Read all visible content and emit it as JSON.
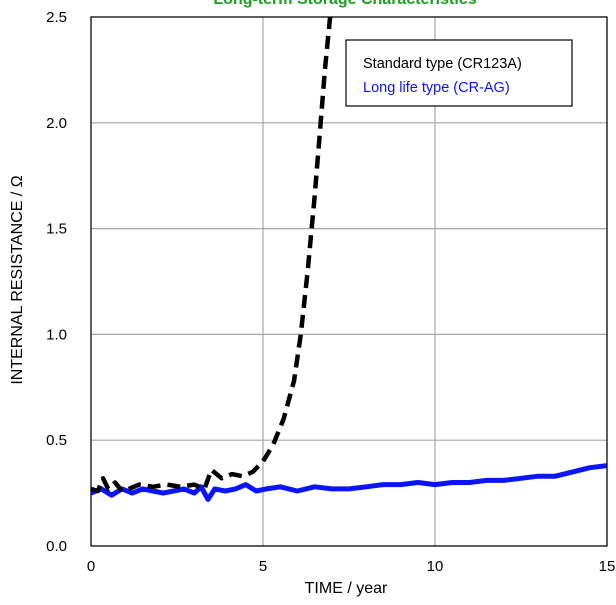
{
  "chart_data": {
    "type": "line",
    "title": "Long-term Storage Characteristics",
    "title_color": "#1aa01a",
    "xlabel": "TIME / year",
    "ylabel": "INTERNAL RESISTANCE / Ω",
    "xlim": [
      0,
      15
    ],
    "ylim": [
      0,
      2.5
    ],
    "xticks": [
      0,
      5,
      10,
      15
    ],
    "xtick_labels": [
      "0",
      "5",
      "10",
      "15"
    ],
    "yticks": [
      0,
      0.5,
      1.0,
      1.5,
      2.0,
      2.5
    ],
    "ytick_labels": [
      "0.0",
      "0.5",
      "1.0",
      "1.5",
      "2.0",
      "2.5"
    ],
    "grid": true,
    "legend_position": "top-right",
    "series": [
      {
        "name": "Standard type (CR123A)",
        "color": "#000000",
        "style": "dashed",
        "x": [
          0,
          0.2,
          0.35,
          0.5,
          0.7,
          0.9,
          1.1,
          1.4,
          1.8,
          2.2,
          2.6,
          3.0,
          3.3,
          3.5,
          3.8,
          4.1,
          4.4,
          4.7,
          5.0,
          5.3,
          5.6,
          5.9,
          6.1,
          6.3,
          6.5,
          6.65,
          6.8,
          6.95
        ],
        "y": [
          0.27,
          0.26,
          0.32,
          0.27,
          0.3,
          0.26,
          0.27,
          0.29,
          0.28,
          0.29,
          0.28,
          0.29,
          0.27,
          0.36,
          0.32,
          0.34,
          0.33,
          0.35,
          0.4,
          0.48,
          0.6,
          0.78,
          1.0,
          1.3,
          1.65,
          1.95,
          2.25,
          2.5
        ]
      },
      {
        "name": "Long life type (CR-AG)",
        "color": "#0a14ff",
        "style": "solid",
        "x": [
          0,
          0.3,
          0.6,
          0.9,
          1.2,
          1.5,
          1.8,
          2.1,
          2.4,
          2.7,
          3.0,
          3.2,
          3.4,
          3.6,
          3.9,
          4.2,
          4.5,
          4.8,
          5.1,
          5.5,
          6.0,
          6.5,
          7.0,
          7.5,
          8.0,
          8.5,
          9.0,
          9.5,
          10.0,
          10.5,
          11.0,
          11.5,
          12.0,
          12.5,
          13.0,
          13.5,
          14.0,
          14.5,
          15.0
        ],
        "y": [
          0.25,
          0.27,
          0.24,
          0.27,
          0.25,
          0.27,
          0.26,
          0.25,
          0.26,
          0.27,
          0.25,
          0.28,
          0.22,
          0.27,
          0.26,
          0.27,
          0.29,
          0.26,
          0.27,
          0.28,
          0.26,
          0.28,
          0.27,
          0.27,
          0.28,
          0.29,
          0.29,
          0.3,
          0.29,
          0.3,
          0.3,
          0.31,
          0.31,
          0.32,
          0.33,
          0.33,
          0.35,
          0.37,
          0.38
        ]
      }
    ]
  }
}
